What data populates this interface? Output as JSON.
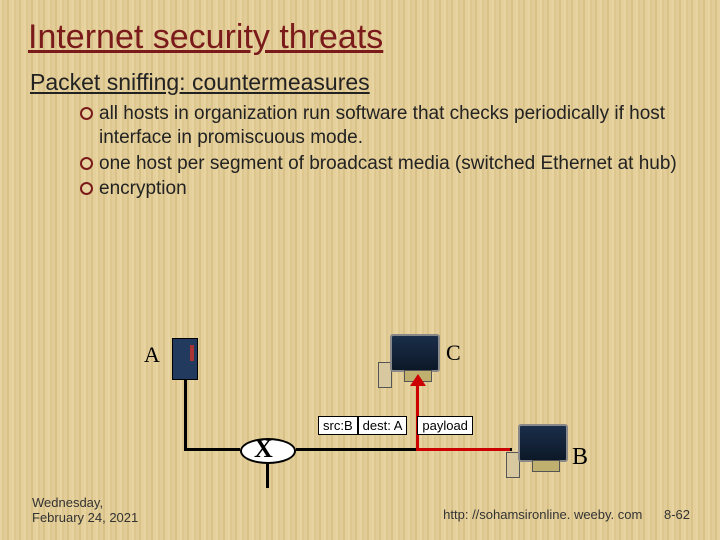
{
  "title": "Internet security threats",
  "subtitle": "Packet sniffing: countermeasures",
  "bullets": [
    "all hosts in organization run software that checks periodically if host interface in promiscuous mode.",
    "one host per segment of broadcast media (switched Ethernet at hub)",
    "encryption"
  ],
  "diagram": {
    "labels": {
      "A": "A",
      "B": "B",
      "C": "C"
    },
    "packet": {
      "src": "src:B",
      "dest": "dest: A",
      "payload": "payload"
    },
    "hubMark": "X",
    "colors": {
      "wire": "#000000",
      "redWire": "#cc0000",
      "device": "#223a5e",
      "monitor": "#1a2e4a",
      "hubBg": "#ffffff"
    }
  },
  "footer": {
    "date": "Wednesday,\nFebruary 24, 2021",
    "url": "http: //sohamsironline. weeby. com",
    "page": "8-62"
  },
  "style": {
    "titleColor": "#7a1a1a",
    "bulletRing": "#7a1a1a",
    "bgStripe1": "#e8d4a0",
    "bgStripe2": "#ddc78f",
    "titleFontSize": 34,
    "subtitleFontSize": 23,
    "bulletFontSize": 19
  }
}
